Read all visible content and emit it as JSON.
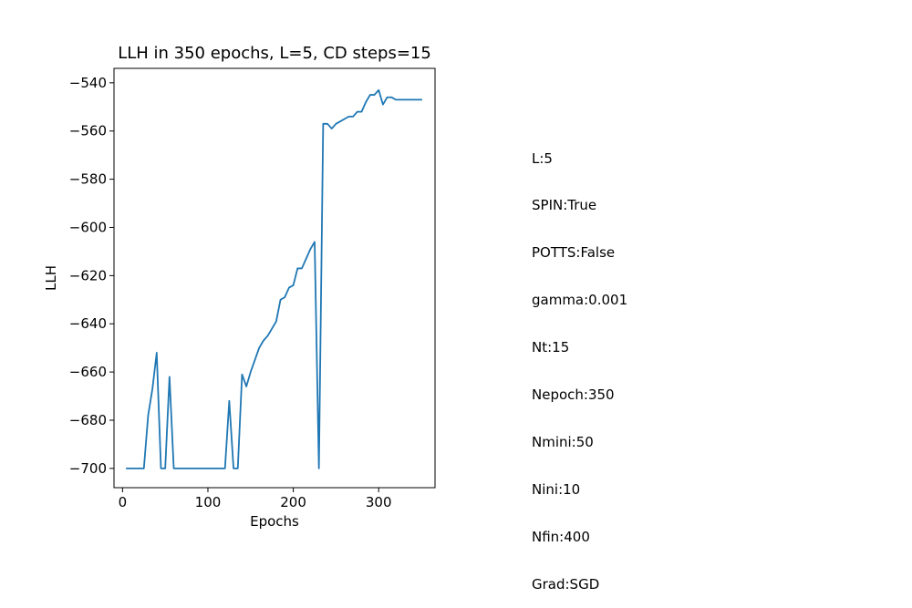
{
  "chart_data": {
    "type": "line",
    "title": "LLH in 350 epochs, L=5, CD steps=15",
    "xlabel": "Epochs",
    "ylabel": "LLH",
    "xlim": [
      -10,
      366
    ],
    "ylim": [
      -708,
      -534
    ],
    "xticks": [
      0,
      100,
      200,
      300
    ],
    "yticks": [
      -700,
      -680,
      -660,
      -640,
      -620,
      -600,
      -580,
      -560,
      -540
    ],
    "grid": false,
    "legend": "none",
    "color": "#1f77b4",
    "series": [
      {
        "x": [
          5,
          10,
          15,
          20,
          25,
          30,
          35,
          40,
          45,
          50,
          55,
          60,
          65,
          70,
          75,
          80,
          85,
          90,
          95,
          100,
          105,
          110,
          115,
          120,
          125,
          130,
          135,
          140,
          145,
          150,
          155,
          160,
          165,
          170,
          175,
          180,
          185,
          190,
          195,
          200,
          205,
          210,
          215,
          220,
          225,
          230,
          235,
          240,
          245,
          250,
          255,
          260,
          265,
          270,
          275,
          280,
          285,
          290,
          295,
          300,
          305,
          310,
          315,
          320,
          325,
          330,
          335,
          340,
          345,
          350
        ],
        "values": [
          -700,
          -700,
          -700,
          -700,
          -700,
          -678,
          -667,
          -652,
          -700,
          -700,
          -662,
          -700,
          -700,
          -700,
          -700,
          -700,
          -700,
          -700,
          -700,
          -700,
          -700,
          -700,
          -700,
          -700,
          -672,
          -700,
          -700,
          -661,
          -666,
          -660,
          -655,
          -650,
          -647,
          -645,
          -642,
          -639,
          -630,
          -629,
          -625,
          -624,
          -617,
          -617,
          -613,
          -609,
          -606,
          -700,
          -557,
          -557,
          -559,
          -557,
          -556,
          -555,
          -554,
          -554,
          -552,
          -552,
          -548,
          -545,
          -545,
          -543,
          -549,
          -546,
          -546,
          -547,
          -547,
          -547,
          -547,
          -547,
          -547,
          -547
        ]
      }
    ]
  },
  "params": [
    "L:5",
    "SPIN:True",
    "POTTS:False",
    "gamma:0.001",
    "Nt:15",
    "Nepoch:350",
    "Nmini:50",
    "Nini:10",
    "Nfin:400",
    "Grad:SGD"
  ]
}
